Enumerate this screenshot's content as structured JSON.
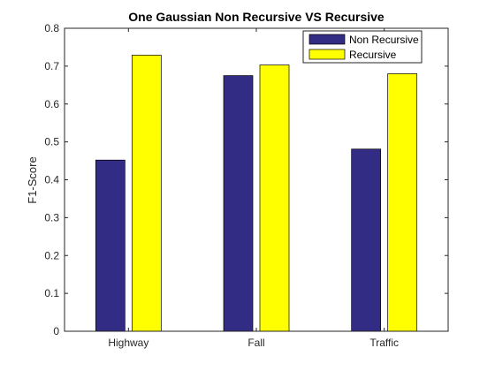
{
  "chart_data": {
    "type": "bar",
    "title": "One Gaussian Non Recursive VS Recursive",
    "xlabel": "",
    "ylabel": "F1-Score",
    "categories": [
      "Highway",
      "Fall",
      "Traffic"
    ],
    "series": [
      {
        "name": "Non Recursive",
        "values": [
          0.452,
          0.675,
          0.481
        ],
        "color": "#332c85"
      },
      {
        "name": "Recursive",
        "values": [
          0.729,
          0.703,
          0.68
        ],
        "color": "#ffff00"
      }
    ],
    "ylim": [
      0,
      0.8
    ],
    "yticks": [
      "0",
      "0.1",
      "0.2",
      "0.3",
      "0.4",
      "0.5",
      "0.6",
      "0.7",
      "0.8"
    ],
    "grid": false,
    "legend_position": "top-right"
  }
}
